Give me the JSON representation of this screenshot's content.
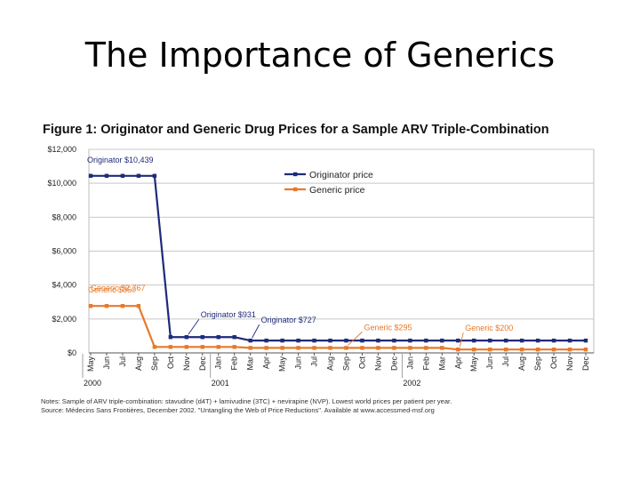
{
  "slide": {
    "title": "The Importance of Generics"
  },
  "figure": {
    "title": "Figure 1: Originator and Generic Drug Prices for a Sample ARV Triple-Combination",
    "note1": "Notes: Sample of ARV triple-combination: stavudine (d4T) + lamivudine (3TC) + nevirapine (NVP). Lowest world prices per patient per year.",
    "note2": "Source: Médecins Sans Frontières, December 2002. \"Untangling the Web of Price Reductions\". Available at www.accessmed-msf.org"
  },
  "chart_data": {
    "type": "line",
    "title": "Figure 1: Originator and Generic Drug Prices for a Sample ARV Triple-Combination",
    "xlabel": "",
    "ylabel": "",
    "ylim": [
      0,
      12000
    ],
    "yticks": [
      "$0",
      "$2,000",
      "$4,000",
      "$6,000",
      "$8,000",
      "$10,000",
      "$12,000"
    ],
    "categories": [
      "May",
      "Jun",
      "Jul",
      "Aug",
      "Sep",
      "Oct",
      "Nov",
      "Dec",
      "Jan",
      "Feb",
      "Mar",
      "Apr",
      "May",
      "Jun",
      "Jul",
      "Aug",
      "Sep",
      "Oct",
      "Nov",
      "Dec",
      "Jan",
      "Feb",
      "Mar",
      "Apr",
      "May",
      "Jun",
      "Jul",
      "Aug",
      "Sep",
      "Oct",
      "Nov",
      "Dec"
    ],
    "year_labels": [
      {
        "label": "2000",
        "index": 0
      },
      {
        "label": "2001",
        "index": 8
      },
      {
        "label": "2002",
        "index": 20
      }
    ],
    "legend": {
      "position": "top-right"
    },
    "series": [
      {
        "name": "Originator price",
        "color": "#1f2a7a",
        "values": [
          10439,
          10439,
          10439,
          10439,
          10439,
          931,
          931,
          931,
          931,
          931,
          727,
          727,
          727,
          727,
          727,
          727,
          727,
          727,
          727,
          727,
          727,
          727,
          727,
          727,
          727,
          727,
          727,
          727,
          727,
          727,
          727,
          727
        ]
      },
      {
        "name": "Generic price",
        "color": "#e8792a",
        "values": [
          2767,
          2767,
          2767,
          2767,
          350,
          350,
          350,
          350,
          350,
          350,
          295,
          295,
          295,
          295,
          295,
          295,
          295,
          295,
          295,
          295,
          295,
          295,
          295,
          200,
          200,
          200,
          200,
          200,
          200,
          200,
          200,
          200
        ]
      }
    ],
    "annotations": [
      {
        "text": "Originator $10,439",
        "series": "Originator price",
        "index": 0
      },
      {
        "text": "Generic $2,767",
        "series": "Generic price",
        "index": 0
      },
      {
        "text": "Generic $350",
        "series": "Generic price",
        "index": 0
      },
      {
        "text": "Originator $931",
        "series": "Originator price",
        "index": 6
      },
      {
        "text": "Originator $727",
        "series": "Originator price",
        "index": 10
      },
      {
        "text": "Generic $295",
        "series": "Generic price",
        "index": 16
      },
      {
        "text": "Generic $200",
        "series": "Generic price",
        "index": 23
      }
    ]
  }
}
